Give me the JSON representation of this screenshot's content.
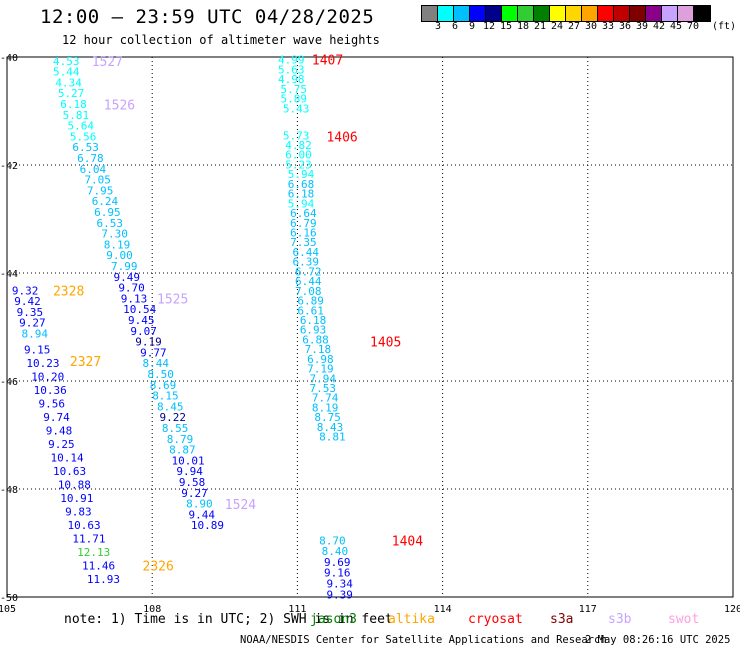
{
  "header": {
    "title": "12:00 – 23:59 UTC 04/28/2025",
    "subtitle": "12 hour collection of altimeter wave heights"
  },
  "colorbar": {
    "colors": [
      "#808080",
      "#00ffff",
      "#00bfff",
      "#0000ff",
      "#00008b",
      "#00ff00",
      "#32cd32",
      "#008000",
      "#ffff00",
      "#ffd700",
      "#ffa500",
      "#ff0000",
      "#c00000",
      "#800000",
      "#8b008b",
      "#c8a2ff",
      "#dda0dd",
      "#000000"
    ],
    "labels": [
      "3",
      "6",
      "9",
      "12",
      "15",
      "18",
      "21",
      "24",
      "27",
      "30",
      "33",
      "36",
      "39",
      "42",
      "45",
      "70"
    ],
    "unit": "(ft)"
  },
  "footer": {
    "note": "note: 1) Time is in UTC; 2) SWH is in feet",
    "credit": "NOAA/NESDIS Center for Satellite Applications and Research",
    "timestamp": "2 May 08:26:16 UTC 2025"
  },
  "legend": [
    {
      "name": "jason3",
      "color": "#008000"
    },
    {
      "name": "altika",
      "color": "#ffa500"
    },
    {
      "name": "cryosat",
      "color": "#ff0000"
    },
    {
      "name": "s3a",
      "color": "#800000"
    },
    {
      "name": "s3b",
      "color": "#c8a2ff"
    },
    {
      "name": "swot",
      "color": "#ff9ee0"
    }
  ],
  "chart_data": {
    "type": "scatter",
    "title": "12:00 – 23:59 UTC 04/28/2025",
    "xlim": [
      105,
      120
    ],
    "ylim": [
      -50,
      -40
    ],
    "x_ticks": [
      "105",
      "108",
      "111",
      "114",
      "117",
      "120"
    ],
    "y_ticks": [
      "-40",
      "-42",
      "-44",
      "-46",
      "-48",
      "-50"
    ],
    "grid": true,
    "legend_placement": "bottom",
    "colors": {
      "cyan": "#00ffff",
      "skyblue": "#00bfff",
      "blue": "#0000ff",
      "navy": "#00008b",
      "green": "#00ff00",
      "lime": "#32cd32",
      "altika": "#ffa500",
      "cryosat": "#ff0000",
      "s3b": "#c8a2ff"
    },
    "track_labels": [
      {
        "label": "1527",
        "x": 106.75,
        "y": -40.07,
        "series": "s3b"
      },
      {
        "label": "1526",
        "x": 107.0,
        "y": -40.88,
        "series": "s3b"
      },
      {
        "label": "1525",
        "x": 108.1,
        "y": -44.47,
        "series": "s3b"
      },
      {
        "label": "1524",
        "x": 109.5,
        "y": -48.28,
        "series": "s3b"
      },
      {
        "label": "2328",
        "x": 105.95,
        "y": -44.32,
        "series": "altika"
      },
      {
        "label": "2327",
        "x": 106.3,
        "y": -45.63,
        "series": "altika"
      },
      {
        "label": "2326",
        "x": 107.8,
        "y": -49.42,
        "series": "altika"
      },
      {
        "label": "1407",
        "x": 111.3,
        "y": -40.05,
        "series": "cryosat"
      },
      {
        "label": "1406",
        "x": 111.6,
        "y": -41.47,
        "series": "cryosat"
      },
      {
        "label": "1405",
        "x": 112.5,
        "y": -45.27,
        "series": "cryosat"
      },
      {
        "label": "1404",
        "x": 112.95,
        "y": -48.95,
        "series": "cryosat"
      }
    ],
    "points": [
      {
        "x": 105.95,
        "y": -40.07,
        "value": "4.53",
        "color": "cyan"
      },
      {
        "x": 105.95,
        "y": -40.27,
        "value": "5.44",
        "color": "cyan"
      },
      {
        "x": 106.0,
        "y": -40.47,
        "value": "4.34",
        "color": "cyan"
      },
      {
        "x": 106.05,
        "y": -40.67,
        "value": "5.27",
        "color": "cyan"
      },
      {
        "x": 106.1,
        "y": -40.87,
        "value": "6.18",
        "color": "cyan"
      },
      {
        "x": 106.15,
        "y": -41.07,
        "value": "5.81",
        "color": "cyan"
      },
      {
        "x": 106.25,
        "y": -41.27,
        "value": "5.64",
        "color": "cyan"
      },
      {
        "x": 106.3,
        "y": -41.47,
        "value": "5.56",
        "color": "cyan"
      },
      {
        "x": 106.35,
        "y": -41.67,
        "value": "6.53",
        "color": "skyblue"
      },
      {
        "x": 106.45,
        "y": -41.87,
        "value": "6.78",
        "color": "skyblue"
      },
      {
        "x": 106.5,
        "y": -42.07,
        "value": "6.04",
        "color": "skyblue"
      },
      {
        "x": 106.6,
        "y": -42.27,
        "value": "7.05",
        "color": "skyblue"
      },
      {
        "x": 106.65,
        "y": -42.47,
        "value": "7.95",
        "color": "skyblue"
      },
      {
        "x": 106.75,
        "y": -42.67,
        "value": "6.24",
        "color": "skyblue"
      },
      {
        "x": 106.8,
        "y": -42.87,
        "value": "6.95",
        "color": "skyblue"
      },
      {
        "x": 106.85,
        "y": -43.07,
        "value": "6.53",
        "color": "skyblue"
      },
      {
        "x": 106.95,
        "y": -43.27,
        "value": "7.30",
        "color": "skyblue"
      },
      {
        "x": 107.0,
        "y": -43.47,
        "value": "8.19",
        "color": "skyblue"
      },
      {
        "x": 107.05,
        "y": -43.67,
        "value": "9.00",
        "color": "skyblue"
      },
      {
        "x": 107.15,
        "y": -43.87,
        "value": "7.99",
        "color": "skyblue"
      },
      {
        "x": 107.2,
        "y": -44.07,
        "value": "9.49",
        "color": "blue"
      },
      {
        "x": 107.3,
        "y": -44.27,
        "value": "9.70",
        "color": "blue"
      },
      {
        "x": 107.35,
        "y": -44.47,
        "value": "9.13",
        "color": "blue"
      },
      {
        "x": 107.4,
        "y": -44.67,
        "value": "10.54",
        "color": "blue"
      },
      {
        "x": 107.5,
        "y": -44.87,
        "value": "9.45",
        "color": "blue"
      },
      {
        "x": 107.55,
        "y": -45.07,
        "value": "9.07",
        "color": "blue"
      },
      {
        "x": 107.65,
        "y": -45.27,
        "value": "9.19",
        "color": "navy"
      },
      {
        "x": 107.75,
        "y": -45.47,
        "value": "9.77",
        "color": "blue"
      },
      {
        "x": 107.8,
        "y": -45.67,
        "value": "8.44",
        "color": "skyblue"
      },
      {
        "x": 107.9,
        "y": -45.87,
        "value": "8.50",
        "color": "skyblue"
      },
      {
        "x": 107.95,
        "y": -46.07,
        "value": "8.69",
        "color": "skyblue"
      },
      {
        "x": 108.0,
        "y": -46.27,
        "value": "8.15",
        "color": "skyblue"
      },
      {
        "x": 108.1,
        "y": -46.47,
        "value": "8.45",
        "color": "skyblue"
      },
      {
        "x": 108.15,
        "y": -46.67,
        "value": "9.22",
        "color": "navy"
      },
      {
        "x": 108.2,
        "y": -46.87,
        "value": "8.55",
        "color": "skyblue"
      },
      {
        "x": 108.3,
        "y": -47.07,
        "value": "8.79",
        "color": "skyblue"
      },
      {
        "x": 108.35,
        "y": -47.27,
        "value": "8.87",
        "color": "skyblue"
      },
      {
        "x": 108.4,
        "y": -47.47,
        "value": "10.01",
        "color": "blue"
      },
      {
        "x": 108.5,
        "y": -47.67,
        "value": "9.94",
        "color": "blue"
      },
      {
        "x": 108.55,
        "y": -47.87,
        "value": "9.58",
        "color": "blue"
      },
      {
        "x": 108.6,
        "y": -48.07,
        "value": "9.27",
        "color": "blue"
      },
      {
        "x": 108.7,
        "y": -48.27,
        "value": "8.90",
        "color": "skyblue"
      },
      {
        "x": 108.75,
        "y": -48.47,
        "value": "9.44",
        "color": "blue"
      },
      {
        "x": 108.8,
        "y": -48.67,
        "value": "10.89",
        "color": "blue"
      },
      {
        "x": 105.1,
        "y": -44.32,
        "value": "9.32",
        "color": "blue"
      },
      {
        "x": 105.15,
        "y": -44.52,
        "value": "9.42",
        "color": "blue"
      },
      {
        "x": 105.2,
        "y": -44.72,
        "value": "9.35",
        "color": "blue"
      },
      {
        "x": 105.25,
        "y": -44.92,
        "value": "9.27",
        "color": "blue"
      },
      {
        "x": 105.3,
        "y": -45.12,
        "value": "8.94",
        "color": "skyblue"
      },
      {
        "x": 105.35,
        "y": -45.42,
        "value": "9.15",
        "color": "blue"
      },
      {
        "x": 105.4,
        "y": -45.67,
        "value": "10.23",
        "color": "blue"
      },
      {
        "x": 105.5,
        "y": -45.92,
        "value": "10.20",
        "color": "blue"
      },
      {
        "x": 105.55,
        "y": -46.17,
        "value": "10.36",
        "color": "blue"
      },
      {
        "x": 105.65,
        "y": -46.42,
        "value": "9.56",
        "color": "blue"
      },
      {
        "x": 105.75,
        "y": -46.67,
        "value": "9.74",
        "color": "blue"
      },
      {
        "x": 105.8,
        "y": -46.92,
        "value": "9.48",
        "color": "blue"
      },
      {
        "x": 105.85,
        "y": -47.17,
        "value": "9.25",
        "color": "blue"
      },
      {
        "x": 105.9,
        "y": -47.42,
        "value": "10.14",
        "color": "blue"
      },
      {
        "x": 105.95,
        "y": -47.67,
        "value": "10.63",
        "color": "blue"
      },
      {
        "x": 106.05,
        "y": -47.92,
        "value": "10.88",
        "color": "blue"
      },
      {
        "x": 106.1,
        "y": -48.17,
        "value": "10.91",
        "color": "blue"
      },
      {
        "x": 106.2,
        "y": -48.42,
        "value": "9.83",
        "color": "blue"
      },
      {
        "x": 106.25,
        "y": -48.67,
        "value": "10.63",
        "color": "blue"
      },
      {
        "x": 106.35,
        "y": -48.92,
        "value": "11.71",
        "color": "blue"
      },
      {
        "x": 106.45,
        "y": -49.17,
        "value": "12.13",
        "color": "lime"
      },
      {
        "x": 106.55,
        "y": -49.42,
        "value": "11.46",
        "color": "blue"
      },
      {
        "x": 106.65,
        "y": -49.67,
        "value": "11.93",
        "color": "blue"
      },
      {
        "x": 110.6,
        "y": -40.05,
        "value": "4.99",
        "color": "cyan"
      },
      {
        "x": 110.6,
        "y": -40.23,
        "value": "5.63",
        "color": "cyan"
      },
      {
        "x": 110.6,
        "y": -40.41,
        "value": "4.98",
        "color": "cyan"
      },
      {
        "x": 110.65,
        "y": -40.59,
        "value": "5.75",
        "color": "cyan"
      },
      {
        "x": 110.65,
        "y": -40.77,
        "value": "5.89",
        "color": "cyan"
      },
      {
        "x": 110.7,
        "y": -40.95,
        "value": "5.43",
        "color": "cyan"
      },
      {
        "x": 110.7,
        "y": -41.45,
        "value": "5.73",
        "color": "cyan"
      },
      {
        "x": 110.75,
        "y": -41.63,
        "value": "4.82",
        "color": "cyan"
      },
      {
        "x": 110.75,
        "y": -41.81,
        "value": "6.00",
        "color": "cyan"
      },
      {
        "x": 110.75,
        "y": -41.99,
        "value": "5.23",
        "color": "cyan"
      },
      {
        "x": 110.8,
        "y": -42.17,
        "value": "5.94",
        "color": "cyan"
      },
      {
        "x": 110.8,
        "y": -42.35,
        "value": "6.68",
        "color": "skyblue"
      },
      {
        "x": 110.8,
        "y": -42.53,
        "value": "6.18",
        "color": "skyblue"
      },
      {
        "x": 110.8,
        "y": -42.71,
        "value": "5.94",
        "color": "cyan"
      },
      {
        "x": 110.85,
        "y": -42.89,
        "value": "6.64",
        "color": "skyblue"
      },
      {
        "x": 110.85,
        "y": -43.07,
        "value": "6.79",
        "color": "skyblue"
      },
      {
        "x": 110.85,
        "y": -43.25,
        "value": "6.16",
        "color": "skyblue"
      },
      {
        "x": 110.85,
        "y": -43.43,
        "value": "7.35",
        "color": "skyblue"
      },
      {
        "x": 110.9,
        "y": -43.61,
        "value": "6.44",
        "color": "skyblue"
      },
      {
        "x": 110.9,
        "y": -43.79,
        "value": "6.39",
        "color": "skyblue"
      },
      {
        "x": 110.95,
        "y": -43.97,
        "value": "6.72",
        "color": "skyblue"
      },
      {
        "x": 110.95,
        "y": -44.15,
        "value": "6.44",
        "color": "skyblue"
      },
      {
        "x": 110.95,
        "y": -44.33,
        "value": "7.08",
        "color": "skyblue"
      },
      {
        "x": 111.0,
        "y": -44.51,
        "value": "6.89",
        "color": "skyblue"
      },
      {
        "x": 111.0,
        "y": -44.69,
        "value": "6.61",
        "color": "skyblue"
      },
      {
        "x": 111.05,
        "y": -44.87,
        "value": "6.18",
        "color": "skyblue"
      },
      {
        "x": 111.05,
        "y": -45.05,
        "value": "6.93",
        "color": "skyblue"
      },
      {
        "x": 111.1,
        "y": -45.23,
        "value": "6.88",
        "color": "skyblue"
      },
      {
        "x": 111.15,
        "y": -45.41,
        "value": "7.18",
        "color": "skyblue"
      },
      {
        "x": 111.2,
        "y": -45.59,
        "value": "6.98",
        "color": "skyblue"
      },
      {
        "x": 111.2,
        "y": -45.77,
        "value": "7.19",
        "color": "skyblue"
      },
      {
        "x": 111.25,
        "y": -45.95,
        "value": "7.94",
        "color": "skyblue"
      },
      {
        "x": 111.25,
        "y": -46.13,
        "value": "7.53",
        "color": "skyblue"
      },
      {
        "x": 111.3,
        "y": -46.31,
        "value": "7.74",
        "color": "skyblue"
      },
      {
        "x": 111.3,
        "y": -46.49,
        "value": "8.19",
        "color": "skyblue"
      },
      {
        "x": 111.35,
        "y": -46.67,
        "value": "8.75",
        "color": "skyblue"
      },
      {
        "x": 111.4,
        "y": -46.85,
        "value": "8.43",
        "color": "skyblue"
      },
      {
        "x": 111.45,
        "y": -47.03,
        "value": "8.81",
        "color": "skyblue"
      },
      {
        "x": 111.45,
        "y": -48.95,
        "value": "8.70",
        "color": "skyblue"
      },
      {
        "x": 111.5,
        "y": -49.15,
        "value": "8.40",
        "color": "skyblue"
      },
      {
        "x": 111.55,
        "y": -49.35,
        "value": "9.69",
        "color": "blue"
      },
      {
        "x": 111.55,
        "y": -49.55,
        "value": "9.16",
        "color": "blue"
      },
      {
        "x": 111.6,
        "y": -49.75,
        "value": "9.34",
        "color": "blue"
      },
      {
        "x": 111.6,
        "y": -49.95,
        "value": "9.39",
        "color": "blue"
      }
    ]
  }
}
